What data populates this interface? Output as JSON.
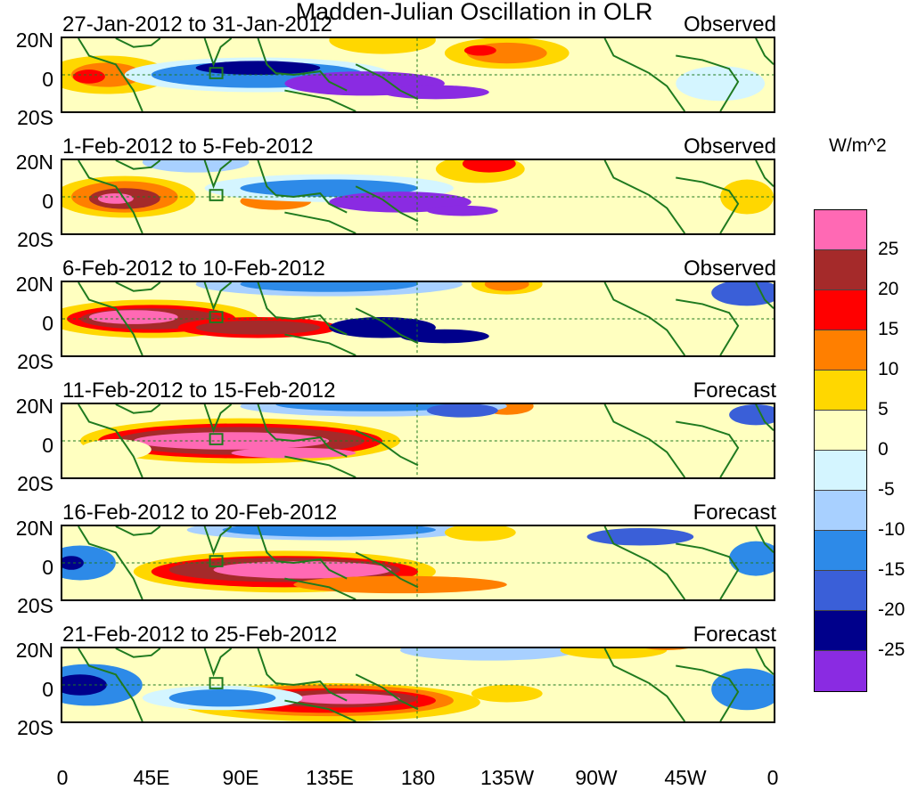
{
  "title": "Madden-Julian Oscillation in OLR",
  "panels": [
    {
      "date_range": "27-Jan-2012 to 31-Jan-2012",
      "status": "Observed"
    },
    {
      "date_range": "1-Feb-2012 to 5-Feb-2012",
      "status": "Observed"
    },
    {
      "date_range": "6-Feb-2012 to 10-Feb-2012",
      "status": "Observed"
    },
    {
      "date_range": "11-Feb-2012 to 15-Feb-2012",
      "status": "Forecast"
    },
    {
      "date_range": "16-Feb-2012 to 20-Feb-2012",
      "status": "Forecast"
    },
    {
      "date_range": "21-Feb-2012 to 25-Feb-2012",
      "status": "Forecast"
    }
  ],
  "lat_ticks": [
    "20N",
    "0",
    "20S"
  ],
  "lon_ticks": [
    "0",
    "45E",
    "90E",
    "135E",
    "180",
    "135W",
    "90W",
    "45W",
    "0"
  ],
  "colorbar": {
    "unit": "W/m^2",
    "labels": [
      "25",
      "20",
      "15",
      "10",
      "5",
      "0",
      "-5",
      "-10",
      "-15",
      "-20",
      "-25"
    ],
    "colors": [
      "#ff69b4",
      "#a52a2a",
      "#ff0000",
      "#ff7f00",
      "#ffd700",
      "#ffffc0",
      "#d4f5ff",
      "#a8d0ff",
      "#2d8ae8",
      "#3a5fd8",
      "#00008b",
      "#8a2be2"
    ]
  },
  "map_colors": {
    "land_outline": "#1f7a1f",
    "grid_line": "#1f7a1f"
  }
}
